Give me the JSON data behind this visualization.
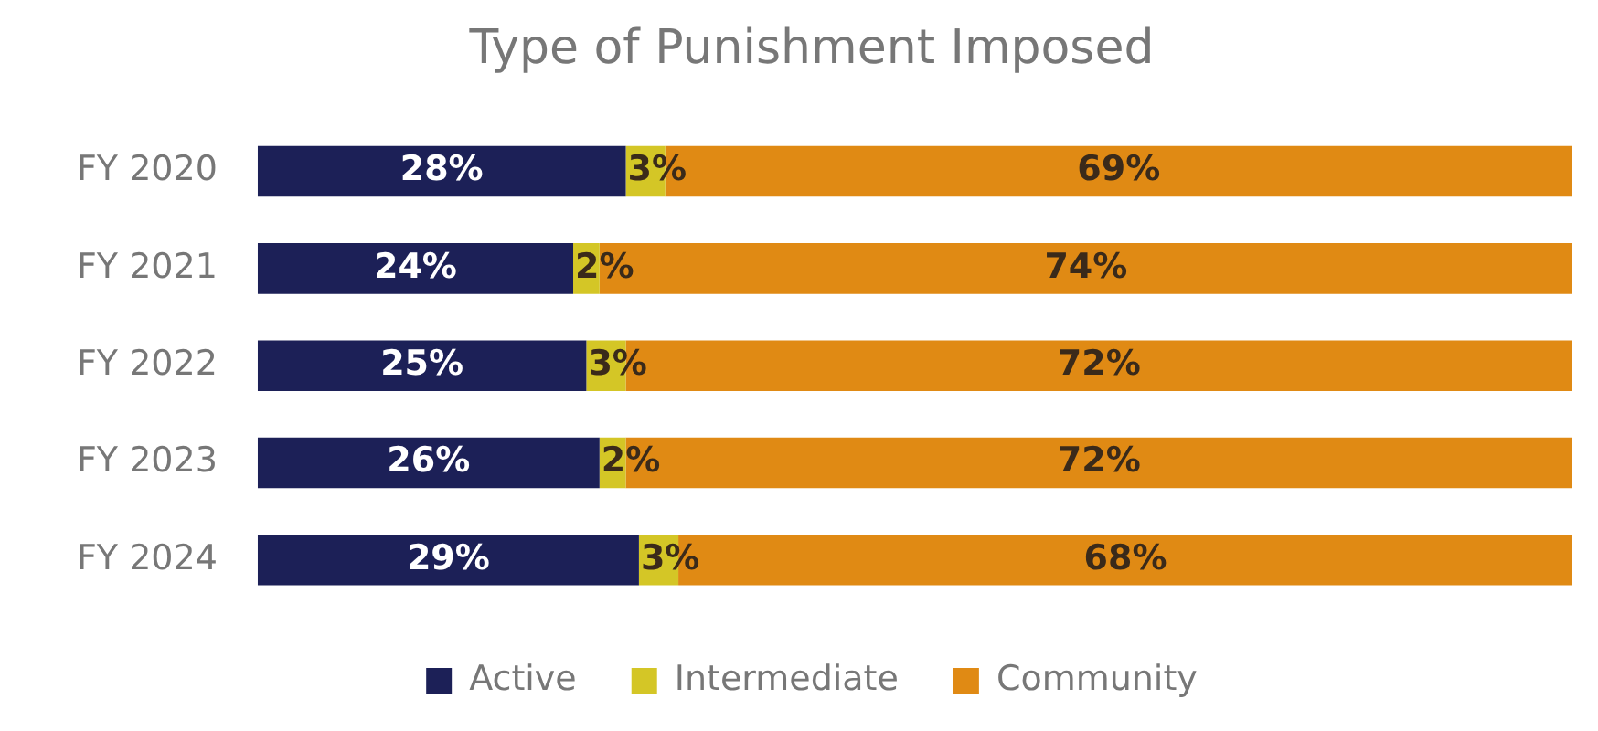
{
  "chart_data": {
    "type": "bar",
    "title": "Type of Punishment Imposed",
    "orientation": "horizontal",
    "stacked": true,
    "legend": "bottom",
    "categories": [
      "FY 2020",
      "FY 2021",
      "FY 2022",
      "FY 2023",
      "FY 2024"
    ],
    "series": [
      {
        "name": "Active",
        "color": "#1c2057",
        "values": [
          28,
          24,
          25,
          26,
          29
        ],
        "value_labels": [
          "28%",
          "24%",
          "25%",
          "26%",
          "29%"
        ]
      },
      {
        "name": "Intermediate",
        "color": "#d4c626",
        "values": [
          3,
          2,
          3,
          2,
          3
        ],
        "value_labels": [
          "3%",
          "2%",
          "3%",
          "2%",
          "3%"
        ]
      },
      {
        "name": "Community",
        "color": "#e08a14",
        "values": [
          69,
          74,
          72,
          72,
          68
        ],
        "value_labels": [
          "69%",
          "74%",
          "72%",
          "72%",
          "68%"
        ]
      }
    ]
  }
}
